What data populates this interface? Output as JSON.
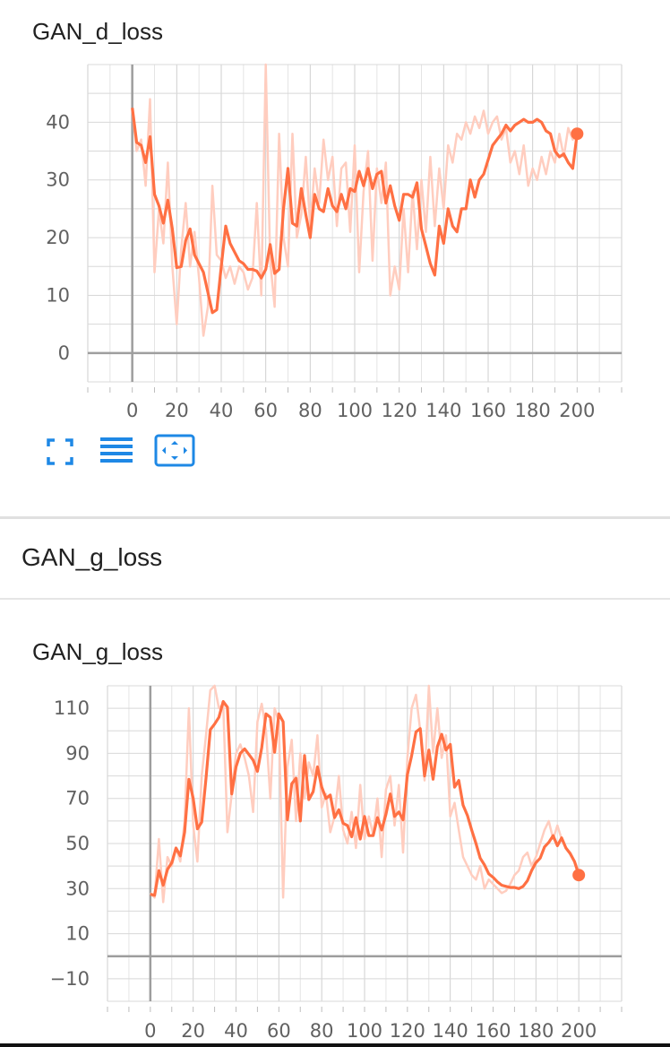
{
  "cards": [
    {
      "title": "GAN_d_loss",
      "chart_data": {
        "type": "line",
        "title": "GAN_d_loss",
        "xlabel": "",
        "ylabel": "",
        "xlim": [
          -20,
          220
        ],
        "ylim": [
          -5,
          50
        ],
        "xticks": [
          0,
          20,
          40,
          60,
          80,
          100,
          120,
          140,
          160,
          180,
          200
        ],
        "yticks": [
          0,
          10,
          20,
          30,
          40
        ],
        "grid": true,
        "color": "#ff7043",
        "raw_color": "#ffcdbf",
        "series": [
          {
            "x": [
              0,
              2,
              4,
              6,
              8,
              10,
              12,
              14,
              16,
              18,
              20,
              22,
              24,
              26,
              28,
              30,
              32,
              34,
              36,
              38,
              40,
              42,
              44,
              46,
              48,
              50,
              52,
              54,
              56,
              58,
              60,
              62,
              64,
              66,
              68,
              70,
              72,
              74,
              76,
              78,
              80,
              82,
              84,
              86,
              88,
              90,
              92,
              94,
              96,
              98,
              100,
              102,
              104,
              106,
              108,
              110,
              112,
              114,
              116,
              118,
              120,
              122,
              124,
              126,
              128,
              130,
              132,
              134,
              136,
              138,
              140,
              142,
              144,
              146,
              148,
              150,
              152,
              154,
              156,
              158,
              160,
              162,
              164,
              166,
              168,
              170,
              172,
              174,
              176,
              178,
              180,
              182,
              184,
              186,
              188,
              190,
              192,
              194,
              196,
              198,
              200
            ],
            "raw": [
              42,
              35,
              37,
              29,
              44,
              14,
              25,
              19,
              33,
              15,
              5,
              18,
              26,
              15,
              21,
              13,
              3,
              8,
              29,
              17,
              16,
              13,
              15,
              12,
              15,
              14,
              11,
              13,
              26,
              10,
              50,
              16,
              8,
              38,
              20,
              15,
              38,
              20,
              24,
              34,
              22,
              32,
              26,
              37,
              30,
              34,
              22,
              32,
              33,
              21,
              36,
              14,
              28,
              35,
              16,
              32,
              26,
              33,
              10,
              15,
              11,
              25,
              14,
              28,
              18,
              30,
              21,
              34,
              22,
              32,
              25,
              36,
              33,
              38,
              37,
              40,
              38,
              41,
              39,
              42,
              38,
              40,
              41,
              37,
              39,
              33,
              35,
              31,
              36,
              29,
              32,
              30,
              34,
              31,
              35,
              33,
              38,
              34,
              39,
              37,
              38
            ],
            "smoothed": [
              42.5,
              36.5,
              36.0,
              33.0,
              37.5,
              27.5,
              25.5,
              22.5,
              26.5,
              21.5,
              14.8,
              15.0,
              19.5,
              21.5,
              17.0,
              15.5,
              14.0,
              10.5,
              7.0,
              7.5,
              15.0,
              22.0,
              19.0,
              17.5,
              16.0,
              15.5,
              14.5,
              14.5,
              14.2,
              13.0,
              14.5,
              18.8,
              13.8,
              14.5,
              25.0,
              32.0,
              22.5,
              22.0,
              28.5,
              24.0,
              20.0,
              27.5,
              25.0,
              24.5,
              28.5,
              25.5,
              24.5,
              27.5,
              25.0,
              28.5,
              28.0,
              31.5,
              29.0,
              32.0,
              28.5,
              31.0,
              31.5,
              26.0,
              29.0,
              25.5,
              23.0,
              27.5,
              27.5,
              27.0,
              29.5,
              21.5,
              18.5,
              15.5,
              13.5,
              22.0,
              19.0,
              25.0,
              22.0,
              21.0,
              25.0,
              25.0,
              30.0,
              27.0,
              30.0,
              31.0,
              33.5,
              36.0,
              37.0,
              38.0,
              39.5,
              38.5,
              39.5,
              40.0,
              40.5,
              40.0,
              40.0,
              40.5,
              40.0,
              38.5,
              38.0,
              35.0,
              34.0,
              34.5,
              33.0,
              32.0,
              38.0
            ]
          }
        ]
      }
    },
    {
      "section_title": "GAN_g_loss",
      "title": "GAN_g_loss",
      "chart_data": {
        "type": "line",
        "title": "GAN_g_loss",
        "xlabel": "",
        "ylabel": "",
        "xlim": [
          -20,
          220
        ],
        "ylim": [
          -20,
          120
        ],
        "xticks": [
          0,
          20,
          40,
          60,
          80,
          100,
          120,
          140,
          160,
          180,
          200
        ],
        "yticks": [
          110,
          90,
          70,
          50,
          30,
          10,
          -10
        ],
        "grid": true,
        "color": "#ff7043",
        "raw_color": "#ffcdbf",
        "series": [
          {
            "x": [
              0,
              2,
              4,
              6,
              8,
              10,
              12,
              14,
              16,
              18,
              20,
              22,
              24,
              26,
              28,
              30,
              32,
              34,
              36,
              38,
              40,
              42,
              44,
              46,
              48,
              50,
              52,
              54,
              56,
              58,
              60,
              62,
              64,
              66,
              68,
              70,
              72,
              74,
              76,
              78,
              80,
              82,
              84,
              86,
              88,
              90,
              92,
              94,
              96,
              98,
              100,
              102,
              104,
              106,
              108,
              110,
              112,
              114,
              116,
              118,
              120,
              122,
              124,
              126,
              128,
              130,
              132,
              134,
              136,
              138,
              140,
              142,
              144,
              146,
              148,
              150,
              152,
              154,
              156,
              158,
              160,
              162,
              164,
              166,
              168,
              170,
              172,
              174,
              176,
              178,
              180,
              182,
              184,
              186,
              188,
              190,
              192,
              194,
              196,
              198,
              200
            ],
            "raw": [
              28,
              26,
              52,
              24,
              44,
              40,
              48,
              42,
              60,
              110,
              58,
              42,
              80,
              98,
              118,
              120,
              110,
              112,
              55,
              72,
              90,
              94,
              88,
              80,
              64,
              104,
              112,
              100,
              70,
              110,
              104,
              26,
              84,
              96,
              60,
              90,
              70,
              86,
              80,
              98,
              66,
              72,
              55,
              62,
              80,
              56,
              50,
              64,
              48,
              76,
              52,
              62,
              54,
              70,
              44,
              74,
              80,
              58,
              76,
              46,
              88,
              110,
              116,
              100,
              78,
              120,
              90,
              110,
              88,
              98,
              62,
              68,
              56,
              44,
              40,
              36,
              34,
              40,
              30,
              34,
              32,
              30,
              28,
              29,
              32,
              36,
              38,
              44,
              46,
              40,
              44,
              50,
              56,
              60,
              52,
              58,
              52,
              48,
              46,
              42,
              38
            ],
            "smoothed": [
              27.5,
              27.0,
              38.0,
              31.5,
              38.5,
              41.5,
              48.0,
              44.5,
              55.0,
              78.5,
              70.0,
              56.5,
              59.5,
              79.0,
              100.5,
              103.0,
              106.0,
              113.0,
              110.5,
              72.0,
              84.0,
              90.0,
              92.0,
              89.5,
              87.0,
              82.0,
              92.5,
              107.5,
              106.0,
              90.5,
              107.5,
              104.0,
              60.5,
              76.5,
              79.0,
              60.0,
              89.0,
              69.5,
              73.0,
              84.0,
              75.0,
              70.0,
              71.5,
              61.5,
              65.0,
              59.0,
              58.0,
              53.0,
              61.5,
              52.0,
              62.0,
              53.5,
              53.5,
              61.5,
              56.0,
              63.0,
              72.0,
              62.0,
              64.0,
              60.5,
              80.5,
              89.0,
              99.5,
              101.0,
              80.0,
              91.5,
              78.5,
              93.0,
              98.5,
              91.5,
              94.0,
              75.0,
              78.0,
              67.0,
              62.5,
              56.0,
              50.0,
              43.5,
              40.5,
              36.5,
              35.0,
              33.0,
              31.5,
              31.0,
              30.5,
              30.5,
              30.0,
              31.0,
              33.5,
              38.0,
              41.5,
              43.5,
              48.5,
              50.5,
              53.5,
              49.0,
              52.5,
              48.0,
              45.5,
              42.0,
              36.0
            ]
          }
        ]
      }
    }
  ],
  "toolbar": {
    "icons": [
      "fullscreen-icon",
      "toggle-lines-icon",
      "fit-domain-icon"
    ],
    "accent": "#1e88e5"
  }
}
